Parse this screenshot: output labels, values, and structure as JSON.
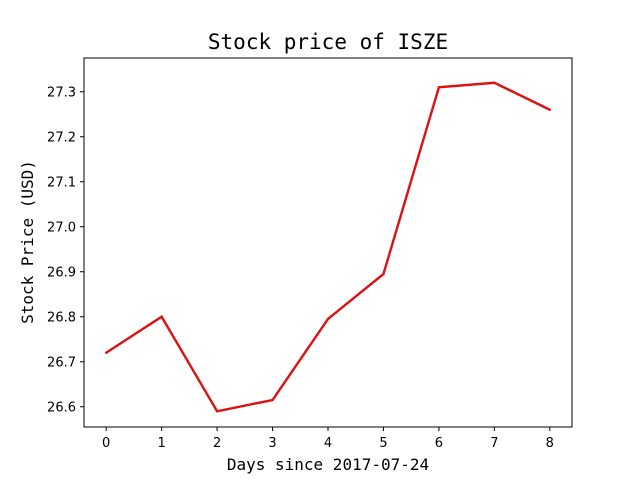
{
  "chart_data": {
    "type": "line",
    "title": "Stock price of ISZE",
    "xlabel": "Days since 2017-07-24",
    "ylabel": "Stock Price (USD)",
    "x": [
      0,
      1,
      2,
      3,
      4,
      5,
      6,
      7,
      8
    ],
    "series": [
      {
        "values": [
          26.72,
          26.8,
          26.59,
          26.615,
          26.795,
          26.895,
          27.31,
          27.32,
          27.26
        ],
        "color": "#dd1111"
      }
    ],
    "xlim": [
      -0.4,
      8.4
    ],
    "ylim": [
      26.555,
      27.375
    ],
    "xticks": [
      0,
      1,
      2,
      3,
      4,
      5,
      6,
      7,
      8
    ],
    "xtick_labels": [
      "0",
      "1",
      "2",
      "3",
      "4",
      "5",
      "6",
      "7",
      "8"
    ],
    "yticks": [
      26.6,
      26.7,
      26.8,
      26.9,
      27.0,
      27.1,
      27.2,
      27.3
    ],
    "ytick_labels": [
      "26.6",
      "26.7",
      "26.8",
      "26.9",
      "27.0",
      "27.1",
      "27.2",
      "27.3"
    ],
    "grid": false,
    "legend": false
  }
}
